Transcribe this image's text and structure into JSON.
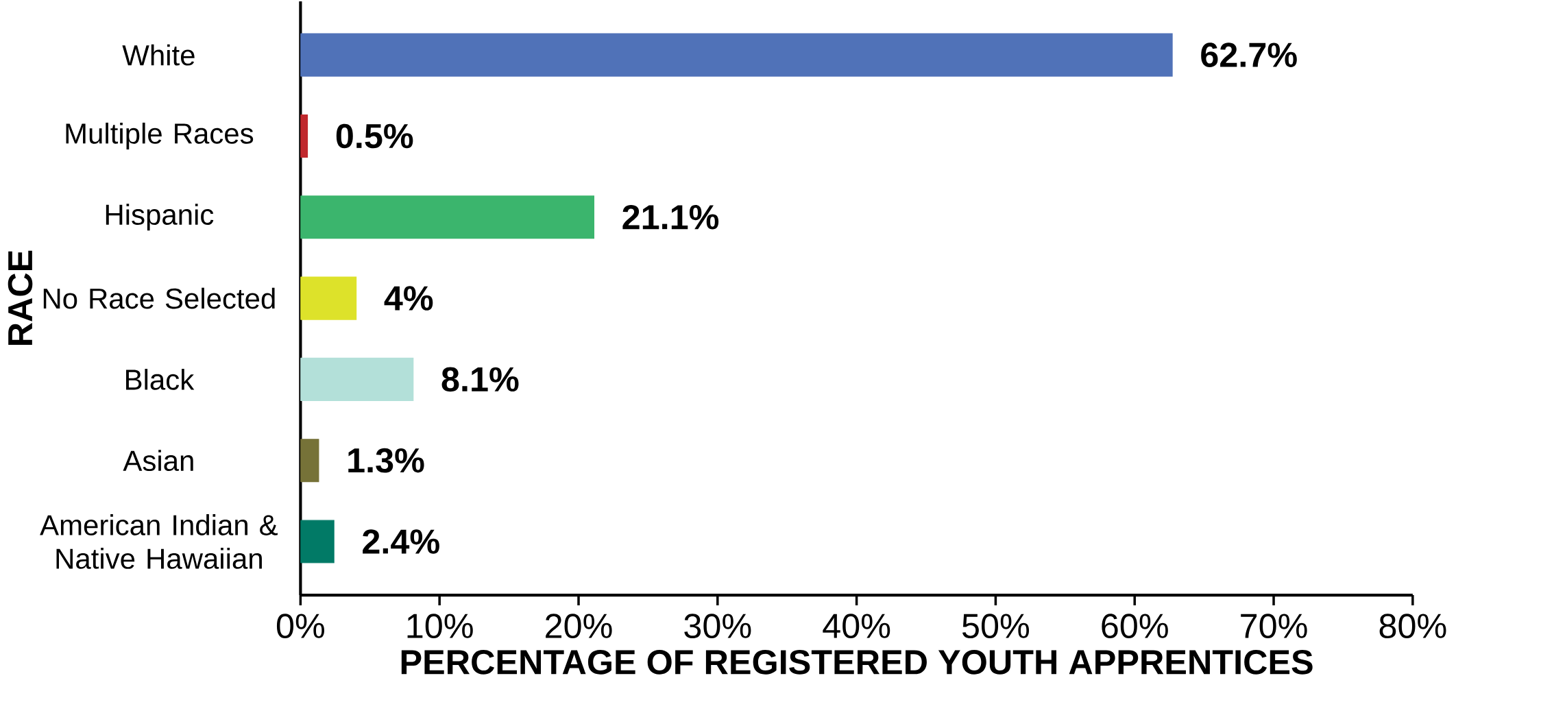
{
  "chart_data": {
    "type": "bar",
    "orientation": "horizontal",
    "xlabel": "PERCENTAGE OF REGISTERED YOUTH APPRENTICES",
    "ylabel": "RACE",
    "categories": [
      "White",
      "Multiple Races",
      "Hispanic",
      "No Race Selected",
      "Black",
      "Asian",
      "American Indian & Native Hawaiian"
    ],
    "values": [
      62.7,
      0.5,
      21.1,
      4,
      8.1,
      1.3,
      2.4
    ],
    "value_labels": [
      "62.7%",
      "0.5%",
      "21.1%",
      "4%",
      "8.1%",
      "1.3%",
      "2.4%"
    ],
    "colors": [
      "#5072b8",
      "#c0282d",
      "#3bb56d",
      "#dde22a",
      "#b3e0d9",
      "#767238",
      "#017a66"
    ],
    "xlim": [
      0,
      80
    ],
    "xticks": [
      {
        "value": 0,
        "label": "0%"
      },
      {
        "value": 10,
        "label": "10%"
      },
      {
        "value": 20,
        "label": "20%"
      },
      {
        "value": 30,
        "label": "30%"
      },
      {
        "value": 40,
        "label": "40%"
      },
      {
        "value": 50,
        "label": "50%"
      },
      {
        "value": 60,
        "label": "60%"
      },
      {
        "value": 70,
        "label": "70%"
      },
      {
        "value": 80,
        "label": "80%"
      }
    ],
    "grid": false
  }
}
